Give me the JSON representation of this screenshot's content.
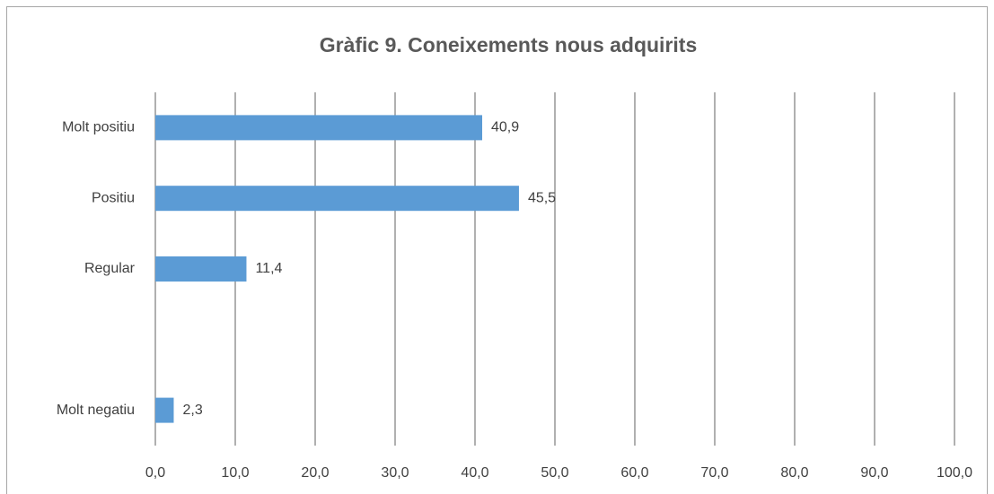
{
  "chart_data": {
    "type": "hbar",
    "title": "Gràfic 9. Coneixements nous adquirits",
    "categories": [
      "Molt positiu",
      "Positiu",
      "Regular",
      null,
      "Molt negatiu"
    ],
    "values": [
      40.9,
      45.5,
      11.4,
      null,
      2.3
    ],
    "value_labels": [
      "40,9",
      "45,5",
      "11,4",
      null,
      "2,3"
    ],
    "color": "#5b9bd5",
    "xlim": [
      0,
      100
    ],
    "xticks": [
      {
        "value": 0,
        "label": "0,0"
      },
      {
        "value": 10,
        "label": "10,0"
      },
      {
        "value": 20,
        "label": "20,0"
      },
      {
        "value": 30,
        "label": "30,0"
      },
      {
        "value": 40,
        "label": "40,0"
      },
      {
        "value": 50,
        "label": "50,0"
      },
      {
        "value": 60,
        "label": "60,0"
      },
      {
        "value": 70,
        "label": "70,0"
      },
      {
        "value": 80,
        "label": "80,0"
      },
      {
        "value": 90,
        "label": "90,0"
      },
      {
        "value": 100,
        "label": "100,0"
      }
    ],
    "grid": true
  }
}
